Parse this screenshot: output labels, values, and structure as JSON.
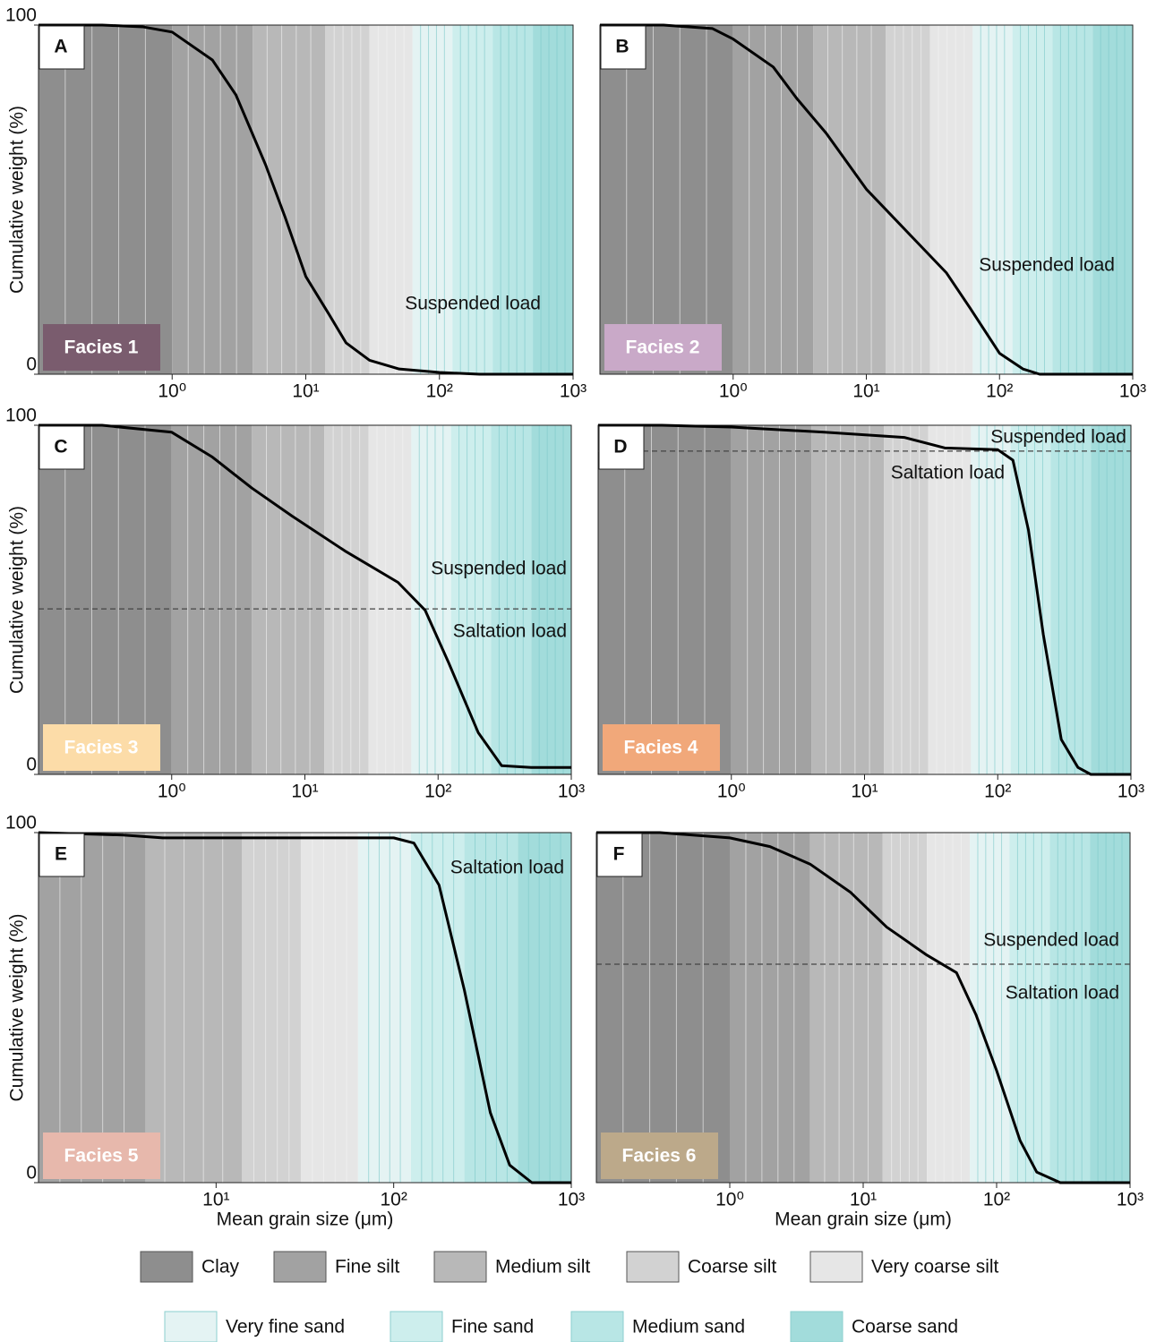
{
  "legend": [
    {
      "name": "Clay",
      "color": "#8e8e8e",
      "range": [
        0.1,
        1
      ]
    },
    {
      "name": "Fine silt",
      "color": "#a2a2a2",
      "range": [
        1,
        4
      ]
    },
    {
      "name": "Medium silt",
      "color": "#b8b8b8",
      "range": [
        4,
        14
      ]
    },
    {
      "name": "Coarse silt",
      "color": "#d2d2d2",
      "range": [
        14,
        30
      ]
    },
    {
      "name": "Very coarse silt",
      "color": "#e6e6e6",
      "range": [
        30,
        63
      ]
    },
    {
      "name": "Very fine sand",
      "color": "#e4f3f3",
      "range": [
        63,
        125
      ]
    },
    {
      "name": "Fine sand",
      "color": "#cdeeed",
      "range": [
        125,
        250
      ]
    },
    {
      "name": "Medium sand",
      "color": "#b8e6e5",
      "range": [
        250,
        500
      ]
    },
    {
      "name": "Coarse sand",
      "color": "#a2dcdb",
      "range": [
        500,
        1000
      ]
    }
  ],
  "chart_data": [
    {
      "type": "line",
      "panel": "A",
      "facies": "Facies 1",
      "facies_color": "#7a5c6e",
      "color": "#000000",
      "log_x": true,
      "x": [
        0.1,
        0.3,
        0.6,
        1,
        2,
        3,
        5,
        7,
        10,
        15,
        20,
        30,
        50,
        100,
        200,
        1000
      ],
      "values": [
        100,
        100,
        99.5,
        98,
        90,
        80,
        60,
        45,
        28,
        17,
        9,
        4,
        1.5,
        0.5,
        0,
        0
      ],
      "xlim": [
        0.1,
        1000
      ],
      "ylim": [
        0,
        100
      ],
      "xticks": [
        {
          "value": 1,
          "label": "10⁰"
        },
        {
          "value": 10,
          "label": "10¹"
        },
        {
          "value": 100,
          "label": "10²"
        },
        {
          "value": 1000,
          "label": "10³"
        }
      ],
      "yticks": [
        0,
        100
      ],
      "ylabel": "Cumulative weight (%)",
      "annotations": [
        "Suspended load"
      ]
    },
    {
      "type": "line",
      "panel": "B",
      "facies": "Facies 2",
      "facies_color": "#c9a9c8",
      "color": "#000000",
      "log_x": true,
      "x": [
        0.1,
        0.3,
        0.7,
        1,
        2,
        3,
        5,
        10,
        20,
        40,
        60,
        100,
        150,
        200,
        1000
      ],
      "values": [
        100,
        100,
        99,
        96,
        88,
        79,
        69,
        53,
        41,
        29,
        19,
        6,
        1.5,
        0,
        0
      ],
      "xlim": [
        0.1,
        1000
      ],
      "ylim": [
        0,
        100
      ],
      "xticks": [
        {
          "value": 1,
          "label": "10⁰"
        },
        {
          "value": 10,
          "label": "10¹"
        },
        {
          "value": 100,
          "label": "10²"
        },
        {
          "value": 1000,
          "label": "10³"
        }
      ],
      "annotations": [
        "Suspended load"
      ]
    },
    {
      "type": "line",
      "panel": "C",
      "facies": "Facies 3",
      "facies_color": "#fcdca8",
      "color": "#000000",
      "log_x": true,
      "x": [
        0.1,
        0.3,
        1,
        2,
        4,
        8,
        20,
        50,
        80,
        120,
        200,
        300,
        500,
        1000
      ],
      "values": [
        100,
        100,
        98,
        91,
        82,
        74,
        64,
        55,
        47,
        32,
        12,
        2.5,
        2,
        2
      ],
      "xlim": [
        0.1,
        1000
      ],
      "ylim": [
        0,
        100
      ],
      "threshold": 47.4,
      "xticks": [
        {
          "value": 1,
          "label": "10⁰"
        },
        {
          "value": 10,
          "label": "10¹"
        },
        {
          "value": 100,
          "label": "10²"
        },
        {
          "value": 1000,
          "label": "10³"
        }
      ],
      "yticks": [
        0,
        100
      ],
      "ylabel": "Cumulative weight (%)",
      "annotations": [
        "Suspended load",
        "Saltation load"
      ]
    },
    {
      "type": "line",
      "panel": "D",
      "facies": "Facies 4",
      "facies_color": "#f1a87a",
      "color": "#000000",
      "log_x": true,
      "x": [
        0.1,
        0.3,
        1,
        5,
        20,
        40,
        100,
        130,
        170,
        220,
        300,
        400,
        500,
        1000
      ],
      "values": [
        100,
        100,
        99.5,
        98,
        96.5,
        93.5,
        93,
        90,
        70,
        40,
        10,
        2,
        0,
        0
      ],
      "xlim": [
        0.1,
        1000
      ],
      "ylim": [
        0,
        100
      ],
      "threshold": 92.6,
      "xticks": [
        {
          "value": 1,
          "label": "10⁰"
        },
        {
          "value": 10,
          "label": "10¹"
        },
        {
          "value": 100,
          "label": "10²"
        },
        {
          "value": 1000,
          "label": "10³"
        }
      ],
      "annotations": [
        "Suspended load",
        "Saltation load"
      ]
    },
    {
      "type": "line",
      "panel": "E",
      "facies": "Facies 5",
      "facies_color": "#e7b8ac",
      "color": "#000000",
      "log_x": true,
      "x": [
        1,
        3,
        5,
        100,
        130,
        180,
        250,
        350,
        450,
        600,
        1000
      ],
      "values": [
        100,
        99.3,
        98.5,
        98.5,
        97,
        85,
        55,
        20,
        5,
        0,
        0
      ],
      "xlim": [
        1,
        1000
      ],
      "ylim": [
        0,
        100
      ],
      "xticks": [
        {
          "value": 10,
          "label": "10¹"
        },
        {
          "value": 100,
          "label": "10²"
        },
        {
          "value": 1000,
          "label": "10³"
        }
      ],
      "yticks": [
        0,
        100
      ],
      "ylabel": "Cumulative weight (%)",
      "xlabel": "Mean grain size (μm)",
      "annotations": [
        "Saltation load"
      ]
    },
    {
      "type": "line",
      "panel": "F",
      "facies": "Facies 6",
      "facies_color": "#bca98a",
      "color": "#000000",
      "log_x": true,
      "x": [
        0.1,
        0.3,
        1,
        2,
        4,
        8,
        15,
        30,
        50,
        70,
        100,
        150,
        200,
        300,
        1000
      ],
      "values": [
        100,
        100,
        98.5,
        96,
        91,
        83,
        73,
        65,
        60,
        48,
        32,
        12,
        3,
        0,
        0
      ],
      "xlim": [
        0.1,
        1000
      ],
      "ylim": [
        0,
        100
      ],
      "threshold": 62.4,
      "xticks": [
        {
          "value": 1,
          "label": "10⁰"
        },
        {
          "value": 10,
          "label": "10¹"
        },
        {
          "value": 100,
          "label": "10²"
        },
        {
          "value": 1000,
          "label": "10³"
        }
      ],
      "xlabel": "Mean grain size (μm)",
      "annotations": [
        "Suspended load",
        "Saltation load"
      ]
    }
  ]
}
